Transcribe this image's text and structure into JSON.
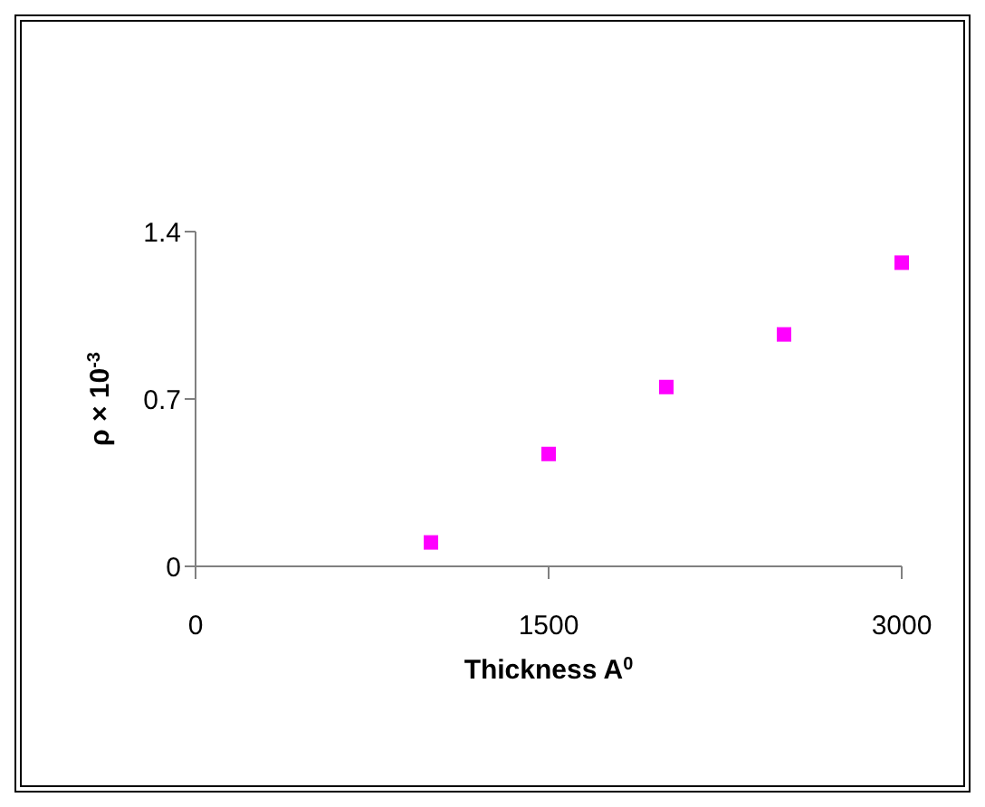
{
  "chart_data": {
    "type": "scatter",
    "xlabel": "Thickness A$^{0}$",
    "ylabel": "ρ × 10$^{-3}$",
    "x": [
      1000,
      1500,
      2000,
      2500,
      3000
    ],
    "series": [
      {
        "color": "#ff00ff",
        "values": [
          0.1,
          0.47,
          0.75,
          0.97,
          1.27
        ]
      }
    ],
    "xlim": [
      0,
      3000
    ],
    "xticks": [
      0,
      1500,
      3000
    ],
    "ylim": [
      0,
      1.4
    ],
    "yticks": [
      0,
      0.7,
      1.4
    ],
    "grid": false,
    "legend": false,
    "marker": "square"
  }
}
